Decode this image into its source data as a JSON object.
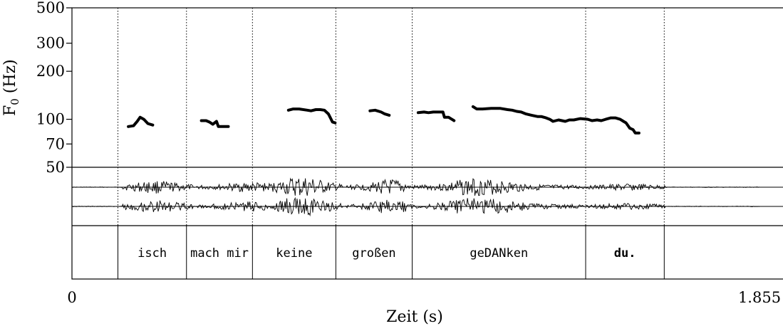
{
  "chart_data": {
    "type": "line",
    "title": "",
    "xlabel": "Zeit (s)",
    "ylabel_main": "F",
    "ylabel_sub": "0",
    "ylabel_unit": " (Hz)",
    "xlim": [
      0,
      1.855
    ],
    "x_tick_labels": [
      "0",
      "1.855"
    ],
    "ylim": [
      50,
      500
    ],
    "y_scale": "log",
    "y_ticks": [
      {
        "value": 500,
        "label": "500"
      },
      {
        "value": 300,
        "label": "300"
      },
      {
        "value": 200,
        "label": "200"
      },
      {
        "value": 100,
        "label": "100"
      },
      {
        "value": 70,
        "label": "70"
      },
      {
        "value": 50,
        "label": "50"
      }
    ],
    "boundaries_s": [
      0.124,
      0.309,
      0.487,
      0.712,
      0.918,
      1.386,
      1.598
    ],
    "words": [
      {
        "text": "isch",
        "start": 0.124,
        "end": 0.309,
        "bold": false
      },
      {
        "text": "mach mir",
        "start": 0.309,
        "end": 0.487,
        "bold": false
      },
      {
        "text": "keine",
        "start": 0.487,
        "end": 0.712,
        "bold": false
      },
      {
        "text": "großen",
        "start": 0.712,
        "end": 0.918,
        "bold": false
      },
      {
        "text": "geDANken",
        "start": 0.918,
        "end": 1.386,
        "bold": false
      },
      {
        "text": "du.",
        "start": 1.386,
        "end": 1.598,
        "bold": true
      }
    ],
    "series": [
      {
        "x": [
          0.152,
          0.166,
          0.176,
          0.184,
          0.194,
          0.205,
          0.218
        ],
        "y": [
          90,
          91,
          97,
          103,
          100,
          94,
          92
        ]
      },
      {
        "x": [
          0.349,
          0.362,
          0.371,
          0.38,
          0.39,
          0.395,
          0.41,
          0.422
        ],
        "y": [
          98,
          98,
          96,
          93,
          97,
          90,
          90,
          90
        ]
      },
      {
        "x": [
          0.584,
          0.597,
          0.613,
          0.635,
          0.645,
          0.658,
          0.67,
          0.681,
          0.692,
          0.703,
          0.71
        ],
        "y": [
          114,
          116,
          116,
          114,
          113,
          115,
          115,
          114,
          108,
          96,
          95
        ]
      },
      {
        "x": [
          0.804,
          0.818,
          0.834,
          0.844,
          0.856
        ],
        "y": [
          113,
          114,
          111,
          108,
          106
        ]
      },
      {
        "x": [
          0.934,
          0.95,
          0.962,
          0.975,
          0.987,
          1.001,
          1.005,
          1.016,
          1.031
        ],
        "y": [
          110,
          111,
          110,
          111,
          111,
          111,
          103,
          103,
          98
        ]
      },
      {
        "x": [
          1.082,
          1.092,
          1.108,
          1.131,
          1.156,
          1.175,
          1.188,
          1.2,
          1.212,
          1.225,
          1.24,
          1.257,
          1.267,
          1.279,
          1.289,
          1.298,
          1.313,
          1.331,
          1.342,
          1.354,
          1.372,
          1.392,
          1.403,
          1.417,
          1.428,
          1.44,
          1.454,
          1.466,
          1.479,
          1.488,
          1.495,
          1.505
        ],
        "y": [
          120,
          116,
          116,
          117,
          117,
          115,
          114,
          112,
          111,
          108,
          106,
          104,
          104,
          102,
          100,
          97,
          99,
          97,
          99,
          99,
          101,
          100,
          98,
          99,
          98,
          100,
          102,
          102,
          100,
          97,
          95,
          88
        ]
      },
      {
        "x": [
          1.505,
          1.514,
          1.52,
          1.53
        ],
        "y": [
          88,
          86,
          82,
          82
        ]
      }
    ]
  }
}
